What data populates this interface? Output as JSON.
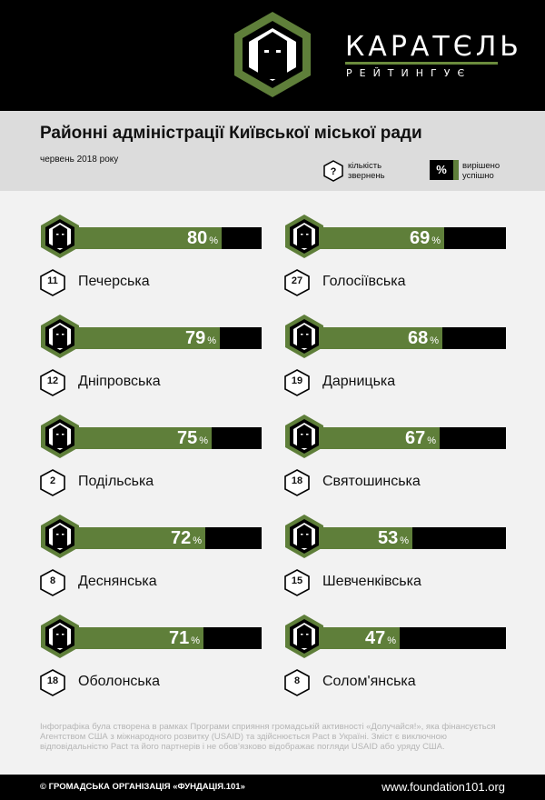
{
  "brand": {
    "name": "КАРАТЄЛЬ",
    "tagline": "РЕЙТИНГУЄ",
    "accent": "#5f7f3a",
    "logo_icon": "hooded-figure-icon"
  },
  "title": "Районні адміністрації Київської міської ради",
  "date": "червень 2018 року",
  "legend": {
    "count_symbol": "?",
    "count_label": "кількість звернень",
    "pct_symbol": "%",
    "pct_label": "вирішено успішно"
  },
  "chart_data": {
    "type": "bar",
    "title": "Районні адміністрації Київської міської ради",
    "unit": "%",
    "ylim": [
      0,
      100
    ],
    "categories": [
      "Печерська",
      "Голосіївська",
      "Дніпровська",
      "Дарницька",
      "Подільська",
      "Святошинська",
      "Деснянська",
      "Шевченківська",
      "Оболонська",
      "Солом'янська"
    ],
    "series": [
      {
        "values": [
          80,
          69,
          79,
          68,
          75,
          67,
          72,
          53,
          71,
          47
        ]
      }
    ],
    "counts": [
      11,
      27,
      12,
      19,
      2,
      18,
      8,
      15,
      18,
      8
    ],
    "colors": {
      "fill": "#5f7f3a",
      "track": "#000000"
    }
  },
  "footnote": "Інфографіка була створена в рамках Програми сприяння громадській активності «Долучайся!», яка фінансується Агентством США з міжнародного розвитку (USAID) та здійснюється Pact в Україні. Зміст є виключною відповідальністю Pact та його партнерів і не обов’язково відображає погляди USAID або уряду США.",
  "footer": {
    "left": "© ГРОМАДСЬКА ОРГАНІЗАЦІЯ «ФУНДАЦІЯ.101»",
    "right": "www.foundation101.org"
  }
}
